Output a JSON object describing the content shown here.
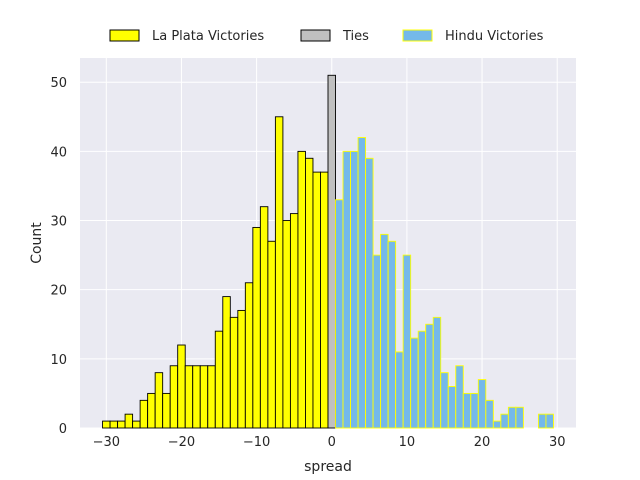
{
  "chart_data": {
    "type": "bar",
    "subtype": "histogram",
    "xlabel": "spread",
    "ylabel": "Count",
    "xlim": [
      -33.5,
      32.5
    ],
    "ylim": [
      0,
      53.5
    ],
    "xticks": [
      -30,
      -20,
      -10,
      0,
      10,
      20,
      30
    ],
    "yticks": [
      0,
      10,
      20,
      30,
      40,
      50
    ],
    "grid": true,
    "legend_position": "top-center",
    "background": "#eaeaf2",
    "series": [
      {
        "name": "La Plata Victories",
        "color": "#ffff00",
        "edgecolor": "#000000",
        "x": [
          -30,
          -29,
          -28,
          -27,
          -26,
          -25,
          -24,
          -23,
          -22,
          -21,
          -20,
          -19,
          -18,
          -17,
          -16,
          -15,
          -14,
          -13,
          -12,
          -11,
          -10,
          -9,
          -8,
          -7,
          -6,
          -5,
          -4,
          -3,
          -2,
          -1
        ],
        "values": [
          1,
          1,
          1,
          2,
          1,
          4,
          5,
          8,
          5,
          9,
          12,
          9,
          9,
          9,
          9,
          14,
          19,
          16,
          17,
          21,
          29,
          32,
          27,
          45,
          30,
          31,
          40,
          39,
          37,
          37
        ]
      },
      {
        "name": "Ties",
        "color": "#c0c0c0",
        "edgecolor": "#000000",
        "x": [
          0
        ],
        "values": [
          51
        ]
      },
      {
        "name": "Hindu Victories",
        "color": "#74b9ea",
        "edgecolor": "#ffff00",
        "x": [
          1,
          2,
          3,
          4,
          5,
          6,
          7,
          8,
          9,
          10,
          11,
          12,
          13,
          14,
          15,
          16,
          17,
          18,
          19,
          20,
          21,
          22,
          23,
          24,
          25,
          26,
          27,
          28,
          29
        ],
        "values": [
          33,
          40,
          40,
          42,
          39,
          25,
          28,
          27,
          11,
          25,
          13,
          14,
          15,
          16,
          8,
          6,
          9,
          5,
          5,
          7,
          4,
          1,
          2,
          3,
          3,
          0,
          0,
          2,
          2
        ]
      }
    ]
  }
}
